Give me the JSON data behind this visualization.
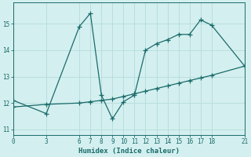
{
  "xlabel": "Humidex (Indice chaleur)",
  "background_color": "#d4efef",
  "grid_color": "#b8dede",
  "line_color": "#1a6b6b",
  "line1_x": [
    0,
    3,
    6,
    7,
    8,
    9,
    10,
    11,
    12,
    13,
    14,
    15,
    16,
    17,
    18,
    21
  ],
  "line1_y": [
    12.1,
    11.6,
    14.9,
    15.4,
    12.3,
    11.4,
    12.05,
    12.3,
    14.0,
    14.25,
    14.4,
    14.6,
    14.6,
    15.15,
    14.95,
    13.4
  ],
  "line2_x": [
    0,
    3,
    6,
    7,
    8,
    9,
    10,
    11,
    12,
    13,
    14,
    15,
    16,
    17,
    18,
    21
  ],
  "line2_y": [
    11.85,
    11.95,
    12.0,
    12.05,
    12.1,
    12.15,
    12.25,
    12.35,
    12.45,
    12.55,
    12.65,
    12.75,
    12.85,
    12.95,
    13.05,
    13.4
  ],
  "xlim": [
    0,
    21
  ],
  "ylim": [
    10.8,
    15.8
  ],
  "xticks": [
    0,
    3,
    6,
    7,
    8,
    9,
    10,
    11,
    12,
    13,
    14,
    15,
    16,
    17,
    18,
    21
  ],
  "yticks": [
    11,
    12,
    13,
    14,
    15
  ],
  "tick_fontsize": 5.5,
  "xlabel_fontsize": 6.5
}
